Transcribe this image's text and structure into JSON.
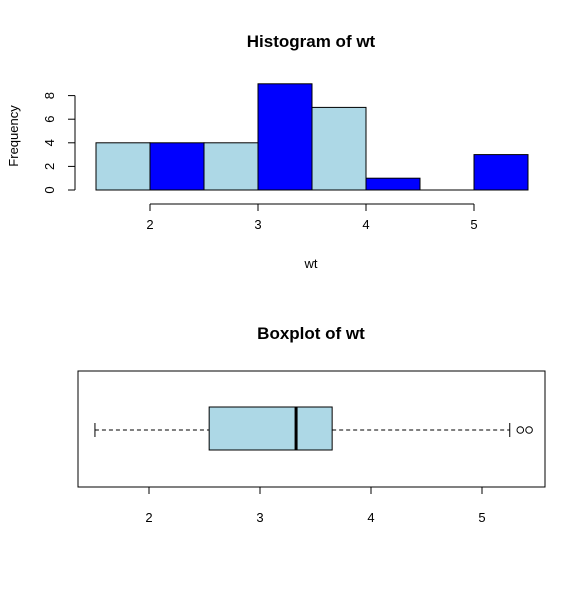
{
  "chart_data": [
    {
      "type": "bar",
      "subtype": "histogram",
      "title": "Histogram of wt",
      "xlabel": "wt",
      "ylabel": "Frequency",
      "bins": [
        {
          "start": 1.5,
          "end": 2.0,
          "count": 4,
          "color": "#add8e6"
        },
        {
          "start": 2.0,
          "end": 2.5,
          "count": 4,
          "color": "#0000ff"
        },
        {
          "start": 2.5,
          "end": 3.0,
          "count": 4,
          "color": "#add8e6"
        },
        {
          "start": 3.0,
          "end": 3.5,
          "count": 9,
          "color": "#0000ff"
        },
        {
          "start": 3.5,
          "end": 4.0,
          "count": 7,
          "color": "#add8e6"
        },
        {
          "start": 4.0,
          "end": 4.5,
          "count": 1,
          "color": "#0000ff"
        },
        {
          "start": 4.5,
          "end": 5.0,
          "count": 0,
          "color": "#add8e6"
        },
        {
          "start": 5.0,
          "end": 5.5,
          "count": 3,
          "color": "#0000ff"
        }
      ],
      "xlim": [
        1.5,
        5.5
      ],
      "ylim": [
        0,
        9
      ],
      "xticks": [
        "2",
        "3",
        "4",
        "5"
      ],
      "yticks": [
        "0",
        "2",
        "4",
        "6",
        "8"
      ],
      "grid": false
    },
    {
      "type": "boxplot",
      "orientation": "horizontal",
      "title": "Boxplot of wt",
      "xlabel": "",
      "box_color": "#add8e6",
      "min": 1.513,
      "q1": 2.542,
      "median": 3.325,
      "q3": 3.65,
      "max": 5.25,
      "outliers": [
        5.345,
        5.424
      ],
      "xlim": [
        1.35,
        5.6
      ],
      "xticks": [
        "2",
        "3",
        "4",
        "5"
      ],
      "grid": false
    }
  ]
}
